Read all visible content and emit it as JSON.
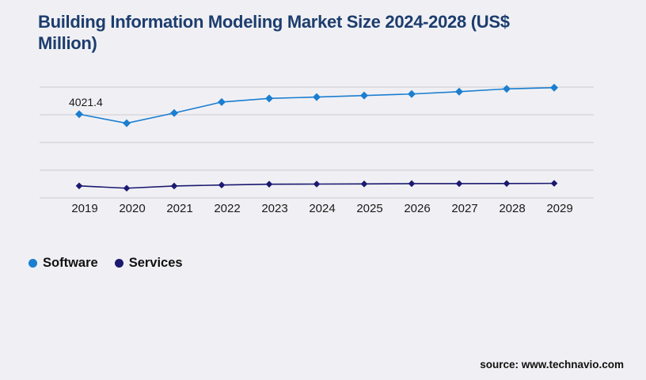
{
  "header": {
    "title": "Building Information Modeling Market Size 2024-2028 (US$ Million)",
    "title_color": "#1c3d6e"
  },
  "chart_data": {
    "type": "line",
    "x": [
      "2019",
      "2020",
      "2021",
      "2022",
      "2023",
      "2024",
      "2025",
      "2026",
      "2027",
      "2028",
      "2029"
    ],
    "series": [
      {
        "name": "Software",
        "color": "#1b7ed0",
        "marker": "diamond",
        "values": [
          4021.4,
          3695,
          4065,
          4460,
          4590,
          4640,
          4695,
          4750,
          4835,
          4935,
          4980
        ]
      },
      {
        "name": "Services",
        "color": "#1b1970",
        "marker": "diamond",
        "values": [
          1435,
          1350,
          1430,
          1465,
          1495,
          1500,
          1505,
          1515,
          1515,
          1520,
          1525
        ]
      }
    ],
    "annotations": [
      {
        "series": "Software",
        "x": "2019",
        "text": "4021.4"
      }
    ],
    "title": "Building Information Modeling Market Size 2024-2028 (US$ Million)",
    "xlabel": "",
    "ylabel": "",
    "ylim": [
      0,
      5500
    ],
    "y_gridlines": [
      1000,
      2000,
      3000,
      4000,
      5000
    ],
    "y_axis_labels_visible": false,
    "grid": true,
    "gridline_color": "#cbcbd0",
    "tick_label_color": "#1a1a1a",
    "legend_position": "bottom-left",
    "background_color": "#f0f0f4"
  },
  "legend": {
    "items": [
      {
        "label": "Software",
        "color": "#1b7ed0"
      },
      {
        "label": "Services",
        "color": "#1b1970"
      }
    ]
  },
  "source": {
    "text": "source: www.technavio.com"
  }
}
